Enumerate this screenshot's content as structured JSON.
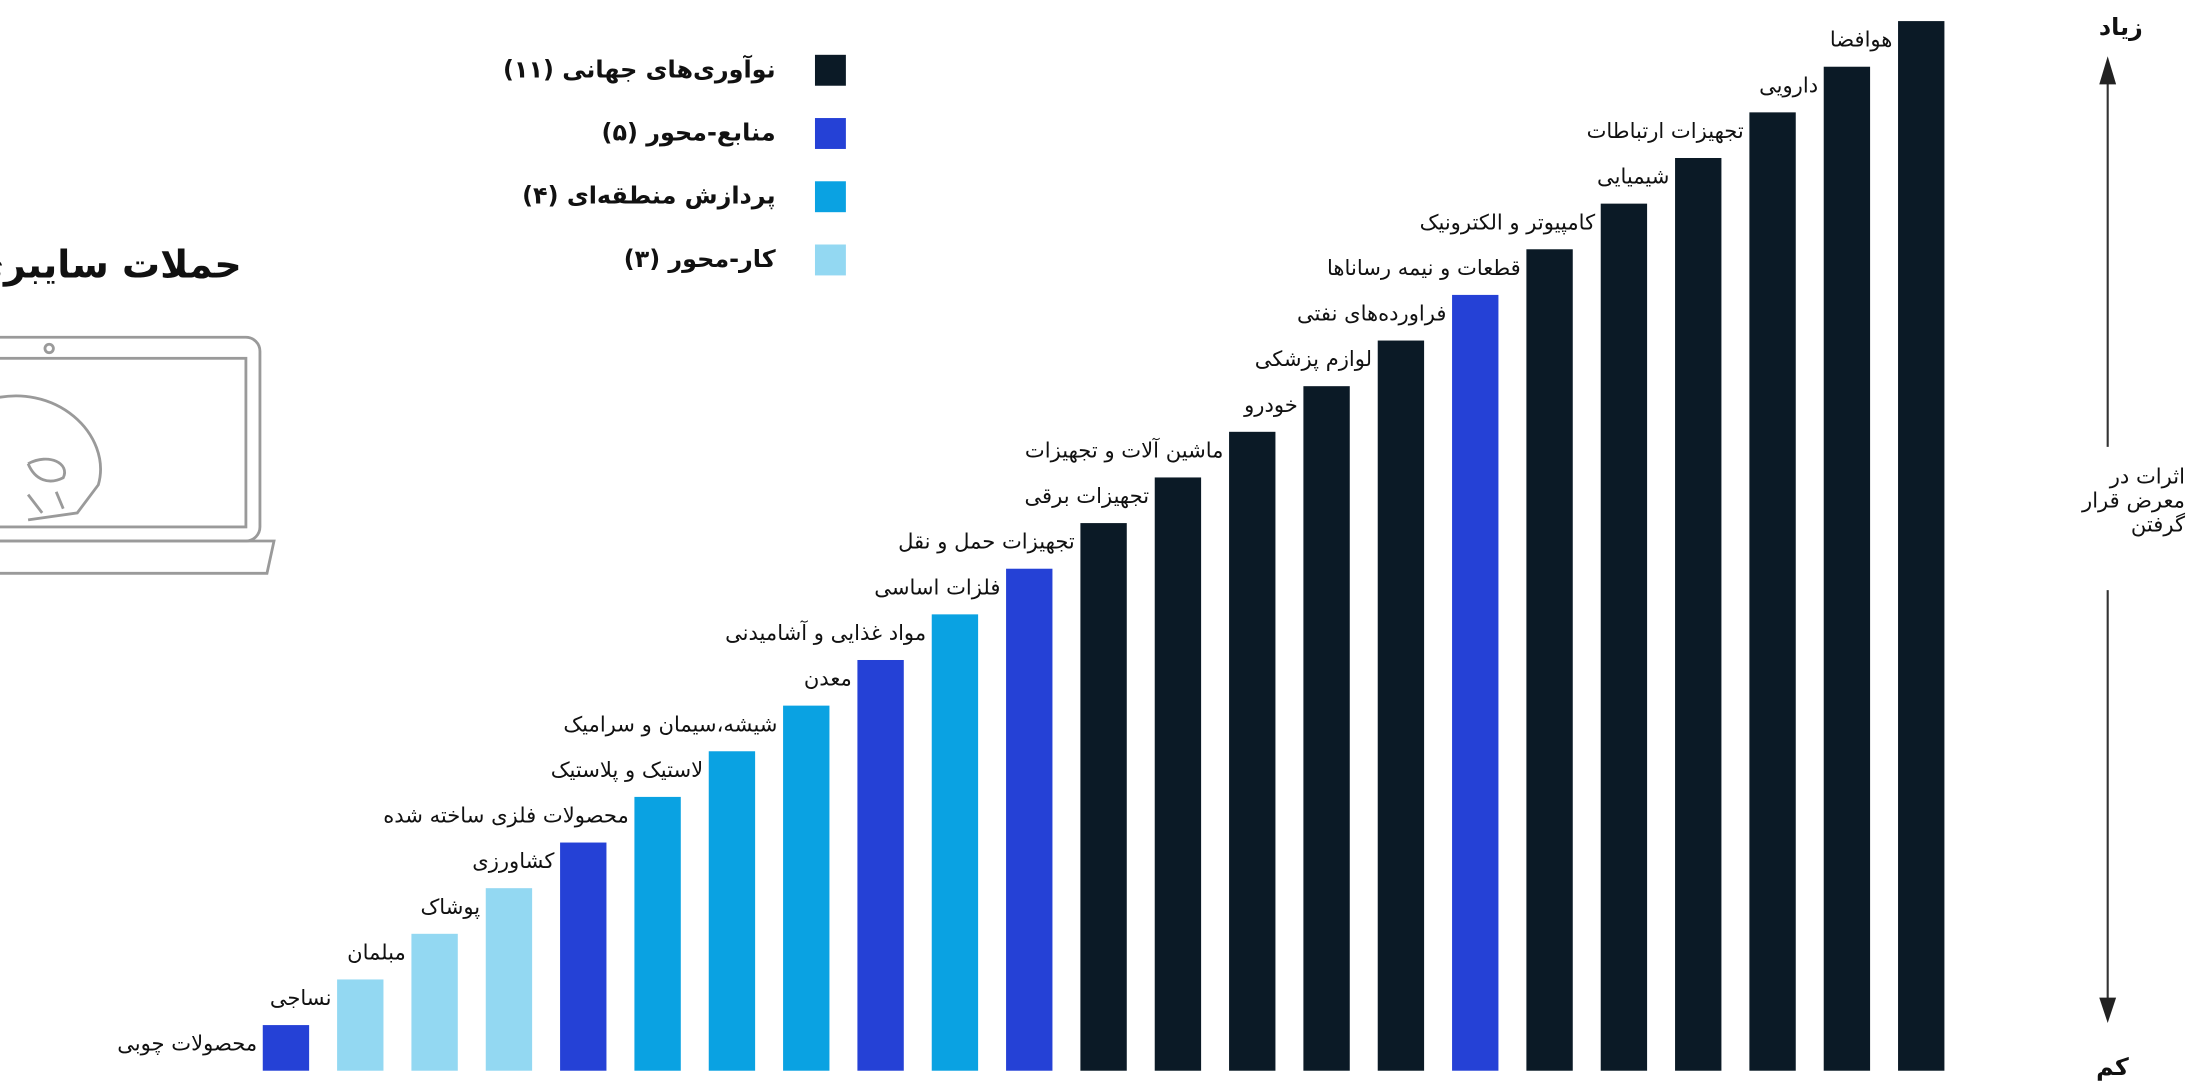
{
  "chart_data": {
    "type": "bar",
    "title": "حملات سایبری",
    "axis_top": "زیاد",
    "axis_bottom": "کم",
    "axis_label": [
      "اثرات در",
      "معرض قرار",
      "گرفتن"
    ],
    "categories": [
      "محصولات چوبی",
      "نساجی",
      "مبلمان",
      "پوشاک",
      "کشاورزی",
      "محصولات فلزی ساخته شده",
      "لاستیک و پلاستیک",
      "شیشه،سیمان و سرامیک",
      "معدن",
      "مواد غذایی و آشامیدنی",
      "فلزات اساسی",
      "تجهیزات حمل و نقل",
      "تجهیزات برقی",
      "ماشین آلات و تجهیزات",
      "خودرو",
      "لوازم پزشکی",
      "فراورده‌های نفتی",
      "قطعات و نیمه رساناها",
      "کامپیوتر و الکترونیک",
      "شیمیایی",
      "تجهیزات ارتباطات",
      "دارویی",
      "هوافضا"
    ],
    "values": [
      1,
      2,
      3,
      4,
      5,
      6,
      7,
      8,
      9,
      10,
      11,
      12,
      13,
      14,
      15,
      16,
      17,
      18,
      19,
      20,
      21,
      22,
      23
    ],
    "colors": [
      "#2541d6",
      "#93d8f2",
      "#93d8f2",
      "#93d8f2",
      "#2541d6",
      "#0aa2e2",
      "#0aa2e2",
      "#0aa2e2",
      "#2541d6",
      "#0aa2e2",
      "#2541d6",
      "#0b1a26",
      "#0b1a26",
      "#0b1a26",
      "#0b1a26",
      "#0b1a26",
      "#2541d6",
      "#0b1a26",
      "#0b1a26",
      "#0b1a26",
      "#0b1a26",
      "#0b1a26",
      "#0b1a26"
    ],
    "legend": [
      {
        "label": "نوآوری‌های جهانی (۱۱)",
        "color": "#0b1a26"
      },
      {
        "label": "منابع-محور (۵)",
        "color": "#2541d6"
      },
      {
        "label": "پردازش منطقه‌ای (۴)",
        "color": "#0aa2e2"
      },
      {
        "label": "کار-محور (۳)",
        "color": "#93d8f2"
      }
    ]
  }
}
